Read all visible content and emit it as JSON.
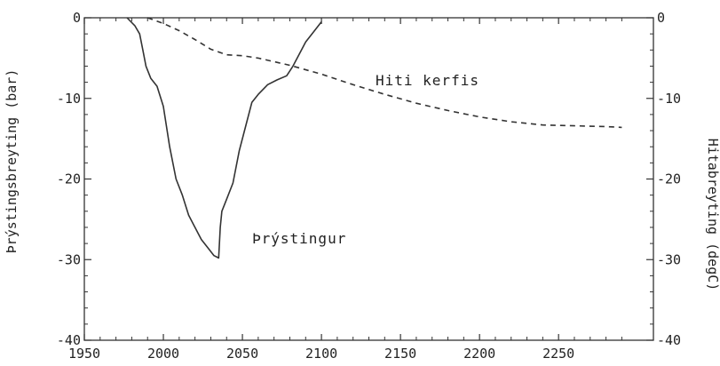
{
  "chart_data": {
    "type": "line",
    "xlabel": "",
    "ylabel_left": "Þrýstingsbreyting (bar)",
    "ylabel_right": "Hitabreyting (degC)",
    "xlim": [
      1950,
      2310
    ],
    "ylim_left": [
      -40,
      0
    ],
    "ylim_right": [
      -40,
      0
    ],
    "x_ticks": [
      1950,
      2000,
      2050,
      2100,
      2150,
      2200,
      2250
    ],
    "y_ticks": [
      0,
      -10,
      -20,
      -30,
      -40
    ],
    "grid": false,
    "legend": "none",
    "series": [
      {
        "name": "Þrýstingur",
        "axis": "left",
        "style": "solid",
        "x": [
          1977,
          1982,
          1985,
          1987,
          1989,
          1992,
          1996,
          2000,
          2004,
          2008,
          2012,
          2016,
          2020,
          2024,
          2028,
          2032,
          2035,
          2036,
          2037,
          2040,
          2044,
          2048,
          2052,
          2056,
          2060,
          2066,
          2072,
          2078,
          2082,
          2086,
          2090,
          2096,
          2100
        ],
        "values": [
          0,
          -1,
          -2,
          -4,
          -6,
          -7.5,
          -8.5,
          -11,
          -16,
          -20,
          -22,
          -24.5,
          -26,
          -27.5,
          -28.5,
          -29.5,
          -29.8,
          -26,
          -24,
          -22.5,
          -20.5,
          -16.5,
          -13.5,
          -10.5,
          -9.5,
          -8.3,
          -7.7,
          -7.2,
          -6,
          -4.5,
          -3,
          -1.5,
          -0.5
        ]
      },
      {
        "name": "Hiti kerfis",
        "axis": "right",
        "style": "dashed",
        "x": [
          1990,
          2000,
          2010,
          2020,
          2030,
          2040,
          2050,
          2060,
          2080,
          2100,
          2120,
          2140,
          2160,
          2180,
          2200,
          2220,
          2240,
          2260,
          2280,
          2290
        ],
        "values": [
          0,
          -0.7,
          -1.6,
          -2.7,
          -3.9,
          -4.6,
          -4.7,
          -5,
          -5.9,
          -7,
          -8.3,
          -9.5,
          -10.6,
          -11.5,
          -12.3,
          -12.9,
          -13.3,
          -13.4,
          -13.5,
          -13.6
        ]
      }
    ],
    "annotations": [
      {
        "text": "Hiti kerfis",
        "x": 2140,
        "y": -8
      },
      {
        "text": "Þrýstingur",
        "x": 2040,
        "y": -29.8
      }
    ]
  }
}
